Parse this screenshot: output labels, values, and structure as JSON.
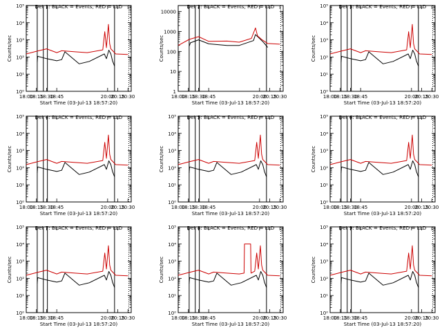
{
  "page": {
    "xlabel": "Start Time (03-Jul-13 18:57:20)",
    "x_tick_labels": [
      "18:00",
      "18:15",
      "18:30",
      "18:45",
      "20:00",
      "20:15",
      "20:30"
    ]
  },
  "colors": {
    "events": "#000000",
    "lld": "#cc0000",
    "background": "#ffffff"
  },
  "chart_data": [
    {
      "type": "line",
      "title": "Det 1: BLACK = Events, RED = LLD",
      "ylabel": "Counts/sec",
      "yscale": "log",
      "ylim": [
        1,
        100000
      ],
      "y_tick_labels": [
        "10⁰",
        "10¹",
        "10²",
        "10³",
        "10⁴",
        "10⁵"
      ],
      "xlim": [
        18.0,
        20.58
      ],
      "markers": {
        "solid": [
          18.27,
          18.42,
          18.52,
          20.17
        ],
        "dotted": [
          20.52
        ]
      },
      "series": [
        {
          "color": "#000000",
          "x": [
            18.27,
            18.28,
            18.5,
            18.75,
            18.87,
            18.95,
            19.3,
            19.55,
            19.92,
            19.97,
            20.03,
            20.08,
            20.12,
            20.17
          ],
          "y": [
            50,
            110,
            80,
            60,
            70,
            200,
            40,
            55,
            150,
            80,
            250,
            150,
            60,
            30
          ]
        },
        {
          "color": "#cc0000",
          "x": [
            18.0,
            18.27,
            18.5,
            18.75,
            18.87,
            19.2,
            19.5,
            19.88,
            19.93,
            19.97,
            20.02,
            20.05,
            20.08,
            20.2,
            20.5
          ],
          "y": [
            150,
            220,
            300,
            180,
            230,
            200,
            180,
            260,
            3000,
            350,
            8000,
            600,
            300,
            150,
            140
          ]
        }
      ]
    },
    {
      "type": "line",
      "title": "Det 2: BLACK = Events, RED = LLD",
      "ylabel": "Counts/sec",
      "yscale": "log",
      "ylim": [
        1,
        20000
      ],
      "y_tick_labels": [
        "1",
        "10",
        "100",
        "1000",
        "10000"
      ],
      "xlim": [
        18.0,
        20.58
      ],
      "markers": {
        "solid": [
          18.27,
          18.42,
          18.52,
          20.17
        ],
        "dotted": [
          20.52
        ]
      },
      "series": [
        {
          "color": "#000000",
          "x": [
            18.27,
            18.3,
            18.5,
            18.75,
            19.2,
            19.5,
            19.85,
            19.9,
            20.0,
            20.1,
            20.2
          ],
          "y": [
            180,
            270,
            380,
            240,
            200,
            200,
            350,
            700,
            450,
            280,
            160
          ]
        },
        {
          "color": "#cc0000",
          "x": [
            18.0,
            18.27,
            18.5,
            18.75,
            19.2,
            19.5,
            19.8,
            19.9,
            19.95,
            20.05,
            20.2,
            20.5
          ],
          "y": [
            200,
            400,
            550,
            320,
            330,
            290,
            450,
            1500,
            600,
            400,
            250,
            230
          ]
        }
      ]
    },
    {
      "type": "line",
      "title": "Det 3: BLACK = Events, RED = LLD",
      "ylabel": "Counts/sec",
      "yscale": "log",
      "ylim": [
        1,
        100000
      ],
      "y_tick_labels": [
        "10⁰",
        "10¹",
        "10²",
        "10³",
        "10⁴",
        "10⁵"
      ],
      "xlim": [
        18.0,
        20.58
      ],
      "markers": {
        "solid": [
          18.27,
          18.42,
          18.52,
          20.17
        ],
        "dotted": [
          20.52
        ]
      },
      "series": [
        {
          "color": "#000000",
          "x": [
            18.27,
            18.28,
            18.5,
            18.75,
            18.87,
            18.95,
            19.3,
            19.55,
            19.92,
            19.97,
            20.03,
            20.08,
            20.12,
            20.17
          ],
          "y": [
            50,
            110,
            80,
            60,
            70,
            200,
            40,
            55,
            150,
            80,
            250,
            150,
            60,
            30
          ]
        },
        {
          "color": "#cc0000",
          "x": [
            18.0,
            18.27,
            18.5,
            18.75,
            18.87,
            19.2,
            19.5,
            19.88,
            19.93,
            19.97,
            20.02,
            20.05,
            20.08,
            20.2,
            20.5
          ],
          "y": [
            150,
            220,
            300,
            180,
            230,
            200,
            180,
            260,
            3000,
            350,
            8000,
            600,
            300,
            150,
            140
          ]
        }
      ]
    },
    {
      "type": "line",
      "title": "Det 4: BLACK = Events, RED = LLD",
      "ylabel": "Counts/sec",
      "yscale": "log",
      "ylim": [
        1,
        100000
      ],
      "y_tick_labels": [
        "10⁰",
        "10¹",
        "10²",
        "10³",
        "10⁴",
        "10⁵"
      ],
      "xlim": [
        18.0,
        20.58
      ],
      "markers": {
        "solid": [
          18.27,
          18.42,
          18.52,
          20.17
        ],
        "dotted": [
          20.52
        ]
      },
      "series": [
        {
          "color": "#000000",
          "x": [
            18.27,
            18.28,
            18.5,
            18.75,
            18.87,
            18.95,
            19.3,
            19.55,
            19.92,
            19.97,
            20.03,
            20.08,
            20.12,
            20.17
          ],
          "y": [
            50,
            110,
            80,
            60,
            70,
            200,
            40,
            55,
            150,
            80,
            250,
            150,
            60,
            30
          ]
        },
        {
          "color": "#cc0000",
          "x": [
            18.0,
            18.27,
            18.5,
            18.75,
            18.87,
            19.2,
            19.5,
            19.88,
            19.93,
            19.97,
            20.02,
            20.05,
            20.08,
            20.2,
            20.5
          ],
          "y": [
            150,
            220,
            300,
            180,
            230,
            200,
            180,
            260,
            3000,
            350,
            8000,
            600,
            300,
            150,
            140
          ]
        }
      ]
    },
    {
      "type": "line",
      "title": "Det 5: BLACK = Events, RED = LLD",
      "ylabel": "Counts/sec",
      "yscale": "log",
      "ylim": [
        1,
        100000
      ],
      "y_tick_labels": [
        "10⁰",
        "10¹",
        "10²",
        "10³",
        "10⁴",
        "10⁵"
      ],
      "xlim": [
        18.0,
        20.58
      ],
      "markers": {
        "solid": [
          18.27,
          18.42,
          18.52,
          20.17
        ],
        "dotted": [
          20.52
        ]
      },
      "series": [
        {
          "color": "#000000",
          "x": [
            18.27,
            18.28,
            18.5,
            18.75,
            18.87,
            18.95,
            19.3,
            19.55,
            19.92,
            19.97,
            20.03,
            20.08,
            20.12,
            20.17
          ],
          "y": [
            50,
            110,
            80,
            60,
            70,
            200,
            40,
            55,
            150,
            80,
            250,
            150,
            60,
            30
          ]
        },
        {
          "color": "#cc0000",
          "x": [
            18.0,
            18.27,
            18.5,
            18.75,
            18.87,
            19.2,
            19.5,
            19.88,
            19.93,
            19.97,
            20.02,
            20.05,
            20.08,
            20.2,
            20.5
          ],
          "y": [
            150,
            220,
            300,
            180,
            230,
            200,
            180,
            260,
            3000,
            350,
            8000,
            600,
            300,
            150,
            140
          ]
        }
      ]
    },
    {
      "type": "line",
      "title": "Det 6: BLACK = Events, RED = LLD",
      "ylabel": "Counts/sec",
      "yscale": "log",
      "ylim": [
        1,
        100000
      ],
      "y_tick_labels": [
        "10⁰",
        "10¹",
        "10²",
        "10³",
        "10⁴",
        "10⁵"
      ],
      "xlim": [
        18.0,
        20.58
      ],
      "markers": {
        "solid": [
          18.27,
          18.42,
          18.52,
          20.17
        ],
        "dotted": [
          20.52
        ]
      },
      "series": [
        {
          "color": "#000000",
          "x": [
            18.27,
            18.28,
            18.5,
            18.75,
            18.87,
            18.95,
            19.3,
            19.55,
            19.92,
            19.97,
            20.03,
            20.08,
            20.12,
            20.17
          ],
          "y": [
            50,
            110,
            80,
            60,
            70,
            200,
            40,
            55,
            150,
            80,
            250,
            150,
            60,
            30
          ]
        },
        {
          "color": "#cc0000",
          "x": [
            18.0,
            18.27,
            18.5,
            18.75,
            18.87,
            19.2,
            19.5,
            19.88,
            19.93,
            19.97,
            20.02,
            20.05,
            20.08,
            20.2,
            20.5
          ],
          "y": [
            150,
            220,
            300,
            180,
            230,
            200,
            180,
            260,
            3000,
            350,
            8000,
            600,
            300,
            150,
            140
          ]
        }
      ]
    },
    {
      "type": "line",
      "title": "Det 7: BLACK = Events, RED = LLD",
      "ylabel": "Counts/sec",
      "yscale": "log",
      "ylim": [
        1,
        100000
      ],
      "y_tick_labels": [
        "10⁰",
        "10¹",
        "10²",
        "10³",
        "10⁴",
        "10⁵"
      ],
      "xlim": [
        18.0,
        20.58
      ],
      "markers": {
        "solid": [
          18.27,
          18.42,
          18.52,
          20.17
        ],
        "dotted": [
          20.52
        ]
      },
      "series": [
        {
          "color": "#000000",
          "x": [
            18.27,
            18.28,
            18.5,
            18.75,
            18.87,
            18.95,
            19.3,
            19.55,
            19.92,
            19.97,
            20.03,
            20.08,
            20.12,
            20.17
          ],
          "y": [
            50,
            110,
            80,
            60,
            70,
            200,
            40,
            55,
            150,
            80,
            250,
            150,
            60,
            30
          ]
        },
        {
          "color": "#cc0000",
          "x": [
            18.0,
            18.27,
            18.5,
            18.75,
            18.87,
            19.2,
            19.5,
            19.88,
            19.93,
            19.97,
            20.02,
            20.05,
            20.08,
            20.2,
            20.5
          ],
          "y": [
            150,
            220,
            300,
            180,
            230,
            200,
            180,
            260,
            3000,
            350,
            8000,
            600,
            300,
            150,
            140
          ]
        }
      ]
    },
    {
      "type": "line",
      "title": "Det 8: BLACK = Events, RED = LLD",
      "ylabel": "Counts/sec",
      "yscale": "log",
      "ylim": [
        1,
        100000
      ],
      "y_tick_labels": [
        "10⁰",
        "10¹",
        "10²",
        "10³",
        "10⁴",
        "10⁵"
      ],
      "xlim": [
        18.0,
        20.58
      ],
      "markers": {
        "solid": [
          18.27,
          18.42,
          18.52,
          20.17
        ],
        "dotted": [
          20.52
        ]
      },
      "series": [
        {
          "color": "#000000",
          "x": [
            18.27,
            18.28,
            18.5,
            18.75,
            18.87,
            18.95,
            19.3,
            19.55,
            19.92,
            19.97,
            20.03,
            20.08,
            20.12,
            20.17
          ],
          "y": [
            50,
            110,
            80,
            60,
            70,
            200,
            40,
            55,
            150,
            80,
            250,
            150,
            60,
            30
          ]
        },
        {
          "color": "#cc0000",
          "x": [
            18.0,
            18.27,
            18.5,
            18.75,
            18.87,
            19.2,
            19.5,
            19.62,
            19.63,
            19.78,
            19.79,
            19.88,
            19.93,
            19.97,
            20.02,
            20.05,
            20.08,
            20.2,
            20.5
          ],
          "y": [
            150,
            220,
            300,
            180,
            230,
            200,
            180,
            200,
            10000,
            10000,
            200,
            260,
            3000,
            350,
            8000,
            600,
            300,
            150,
            140
          ]
        }
      ]
    },
    {
      "type": "line",
      "title": "Det 9: BLACK = Events, RED = LLD",
      "ylabel": "Counts/sec",
      "yscale": "log",
      "ylim": [
        1,
        100000
      ],
      "y_tick_labels": [
        "10⁰",
        "10¹",
        "10²",
        "10³",
        "10⁴",
        "10⁵"
      ],
      "xlim": [
        18.0,
        20.58
      ],
      "markers": {
        "solid": [
          18.27,
          18.42,
          18.52,
          20.17
        ],
        "dotted": [
          20.52
        ]
      },
      "series": [
        {
          "color": "#000000",
          "x": [
            18.27,
            18.28,
            18.5,
            18.75,
            18.87,
            18.95,
            19.3,
            19.55,
            19.92,
            19.97,
            20.03,
            20.08,
            20.12,
            20.17
          ],
          "y": [
            50,
            110,
            80,
            60,
            70,
            200,
            40,
            55,
            150,
            80,
            250,
            150,
            60,
            30
          ]
        },
        {
          "color": "#cc0000",
          "x": [
            18.0,
            18.27,
            18.5,
            18.75,
            18.87,
            19.2,
            19.5,
            19.88,
            19.93,
            19.97,
            20.02,
            20.05,
            20.08,
            20.2,
            20.5
          ],
          "y": [
            150,
            220,
            300,
            180,
            230,
            200,
            180,
            260,
            3000,
            350,
            8000,
            600,
            300,
            150,
            140
          ]
        }
      ]
    }
  ]
}
